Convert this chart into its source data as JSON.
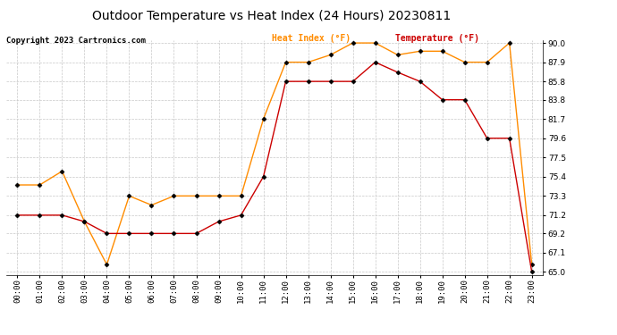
{
  "title": "Outdoor Temperature vs Heat Index (24 Hours) 20230811",
  "copyright": "Copyright 2023 Cartronics.com",
  "legend_heat": "Heat Index (°F)",
  "legend_temp": "Temperature (°F)",
  "hours": [
    "00:00",
    "01:00",
    "02:00",
    "03:00",
    "04:00",
    "05:00",
    "06:00",
    "07:00",
    "08:00",
    "09:00",
    "10:00",
    "11:00",
    "12:00",
    "13:00",
    "14:00",
    "15:00",
    "16:00",
    "17:00",
    "18:00",
    "19:00",
    "20:00",
    "21:00",
    "22:00",
    "23:00"
  ],
  "temperature": [
    71.2,
    71.2,
    71.2,
    70.5,
    69.2,
    69.2,
    69.2,
    69.2,
    69.2,
    70.5,
    71.2,
    75.4,
    85.8,
    85.8,
    85.8,
    85.8,
    87.9,
    86.8,
    85.8,
    83.8,
    83.8,
    79.6,
    79.6,
    65.0
  ],
  "heat_index": [
    74.5,
    74.5,
    76.0,
    70.5,
    65.8,
    73.3,
    72.3,
    73.3,
    73.3,
    73.3,
    73.3,
    81.7,
    87.9,
    87.9,
    88.7,
    90.0,
    90.0,
    88.7,
    89.1,
    89.1,
    87.9,
    87.9,
    90.0,
    65.8
  ],
  "temp_color": "#cc0000",
  "heat_color": "#ff8c00",
  "marker_color": "#000000",
  "ylim_min": 65.0,
  "ylim_max": 90.0,
  "yticks": [
    65.0,
    67.1,
    69.2,
    71.2,
    73.3,
    75.4,
    77.5,
    79.6,
    81.7,
    83.8,
    85.8,
    87.9,
    90.0
  ],
  "grid_color": "#c8c8c8",
  "bg_color": "#ffffff",
  "title_fontsize": 10,
  "tick_fontsize": 6.5,
  "legend_fontsize": 7,
  "copyright_fontsize": 6.5
}
